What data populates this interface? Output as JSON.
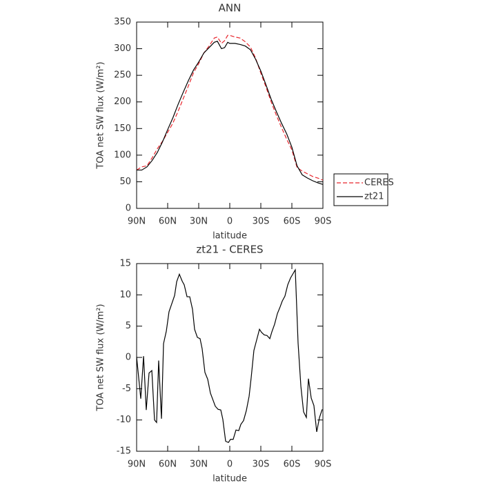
{
  "chart_data": [
    {
      "type": "line",
      "title": "ANN",
      "xlabel": "latitude",
      "ylabel": "TOA net SW flux (W/m²)",
      "x": [
        90,
        85,
        80,
        75,
        70,
        65,
        60,
        55,
        50,
        45,
        40,
        35,
        30,
        25,
        20,
        15,
        12,
        8,
        5,
        2,
        0,
        -5,
        -10,
        -15,
        -20,
        -25,
        -30,
        -35,
        -40,
        -45,
        -50,
        -55,
        -60,
        -65,
        -70,
        -75,
        -80,
        -85,
        -90
      ],
      "series": [
        {
          "name": "CERES",
          "color": "#e8242b",
          "dash": true,
          "values": [
            72,
            78,
            80,
            95,
            112,
            126,
            143,
            160,
            182,
            206,
            230,
            255,
            272,
            292,
            305,
            320,
            322,
            310,
            315,
            325,
            325,
            322,
            320,
            313,
            303,
            282,
            254,
            228,
            200,
            175,
            152,
            130,
            110,
            77,
            70,
            65,
            60,
            57,
            53
          ]
        },
        {
          "name": "zt21",
          "color": "#000000",
          "dash": false,
          "values": [
            72,
            72,
            78,
            90,
            105,
            125,
            148,
            170,
            195,
            218,
            240,
            260,
            275,
            292,
            302,
            312,
            314,
            300,
            302,
            312,
            310,
            310,
            308,
            305,
            298,
            280,
            258,
            232,
            205,
            182,
            160,
            140,
            115,
            80,
            63,
            57,
            52,
            48,
            45
          ]
        }
      ],
      "xlim": [
        90,
        -90
      ],
      "xticks": [
        {
          "value": 90,
          "label": "90N"
        },
        {
          "value": 60,
          "label": "60N"
        },
        {
          "value": 30,
          "label": "30N"
        },
        0,
        {
          "value": -30,
          "label": "30S"
        },
        {
          "value": -60,
          "label": "60S"
        },
        {
          "value": -90,
          "label": "90S"
        }
      ],
      "ylim": [
        0,
        350
      ],
      "yticks": [
        0,
        50,
        100,
        150,
        200,
        250,
        300,
        350
      ],
      "legend": "right"
    },
    {
      "type": "line",
      "title": "zt21 - CERES",
      "xlabel": "latitude",
      "ylabel": "TOA net SW flux (W/m²)",
      "x": [
        90,
        86,
        83.3,
        80.7,
        78,
        75.3,
        72.7,
        70.7,
        68.7,
        66,
        64,
        61.3,
        58.7,
        56,
        53.3,
        51.3,
        48.7,
        46,
        44,
        41.3,
        38.7,
        36,
        34,
        31.3,
        28.7,
        26.7,
        24,
        21.3,
        18.7,
        16,
        14,
        11.3,
        8.7,
        6.7,
        4,
        1.3,
        -0.7,
        -3.3,
        -6,
        -8.7,
        -10.7,
        -13.3,
        -16,
        -18.7,
        -20.7,
        -23.3,
        -26,
        -28.7,
        -30.7,
        -33.3,
        -36,
        -38.7,
        -40.7,
        -43.3,
        -46,
        -48.7,
        -50.7,
        -53.3,
        -56,
        -58.7,
        -63.3,
        -66,
        -68.7,
        -71.3,
        -74,
        -76,
        -78.7,
        -81.3,
        -84,
        -86.7,
        -89.3
      ],
      "series": [
        {
          "name": "zt21 - CERES",
          "color": "#000000",
          "dash": false,
          "values": [
            0.1,
            -6.6,
            0.2,
            -8.4,
            -2.5,
            -2.1,
            -10,
            -10.4,
            -0.5,
            -9.8,
            2.2,
            4.2,
            7.3,
            8.6,
            9.9,
            12.1,
            13.3,
            12.2,
            11.6,
            9.7,
            9.7,
            7.7,
            4.5,
            3.2,
            3.0,
            1.4,
            -2.4,
            -3.5,
            -5.7,
            -6.9,
            -7.8,
            -8.3,
            -8.4,
            -9.9,
            -13.4,
            -13.6,
            -13.1,
            -13.1,
            -11.6,
            -11.7,
            -10.7,
            -10.1,
            -8.5,
            -6.2,
            -3.2,
            1.1,
            2.8,
            4.5,
            4.0,
            3.6,
            3.5,
            3.0,
            4.1,
            5.3,
            7.0,
            8.1,
            9.0,
            9.8,
            11.6,
            12.7,
            14.0,
            2.3,
            -4.6,
            -8.7,
            -9.6,
            -3.4,
            -6.5,
            -7.7,
            -11.9,
            -9.6,
            -8.3
          ]
        }
      ],
      "xlim": [
        90,
        -90
      ],
      "xticks": [
        {
          "value": 90,
          "label": "90N"
        },
        {
          "value": 60,
          "label": "60N"
        },
        {
          "value": 30,
          "label": "30N"
        },
        0,
        {
          "value": -30,
          "label": "30S"
        },
        {
          "value": -60,
          "label": "60S"
        },
        {
          "value": -90,
          "label": "90S"
        }
      ],
      "ylim": [
        -15,
        15
      ],
      "yticks": [
        -15,
        -10,
        -5,
        0,
        5,
        10,
        15
      ]
    }
  ]
}
